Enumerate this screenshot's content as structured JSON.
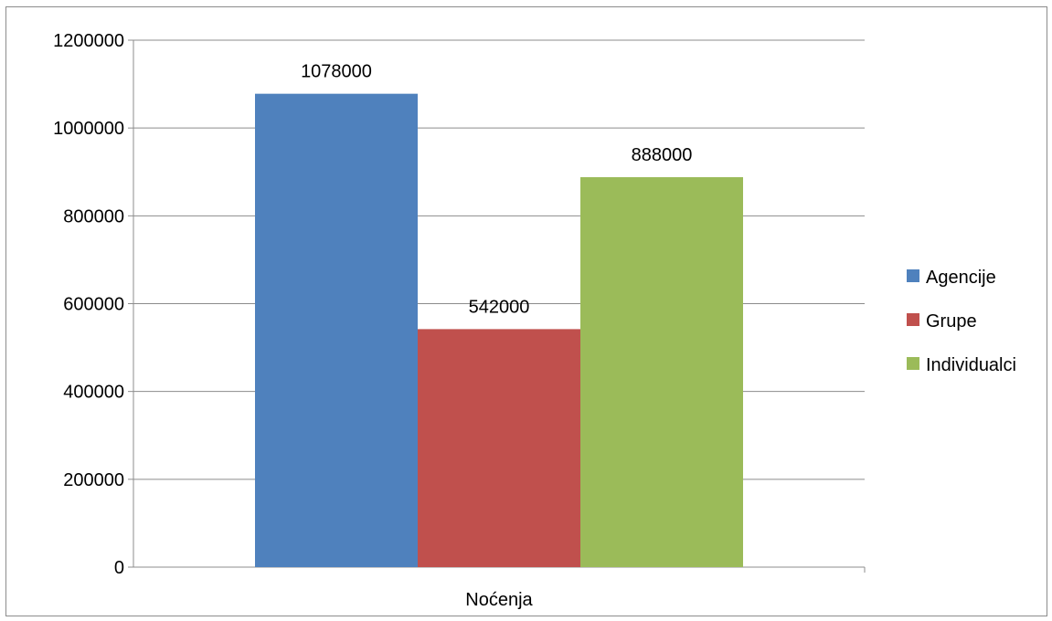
{
  "chart_data": {
    "type": "bar",
    "categories": [
      "Noćenja"
    ],
    "series": [
      {
        "name": "Agencije",
        "values": [
          1078000
        ],
        "color": "#4f81bd"
      },
      {
        "name": "Grupe",
        "values": [
          542000
        ],
        "color": "#c0504d"
      },
      {
        "name": "Individualci",
        "values": [
          888000
        ],
        "color": "#9bbb59"
      }
    ],
    "ylim": [
      0,
      1200000
    ],
    "yticks": [
      "0",
      "200000",
      "400000",
      "600000",
      "800000",
      "1000000",
      "1200000"
    ],
    "grid": true,
    "legend": "right",
    "data_labels": [
      "1078000",
      "542000",
      "888000"
    ]
  }
}
